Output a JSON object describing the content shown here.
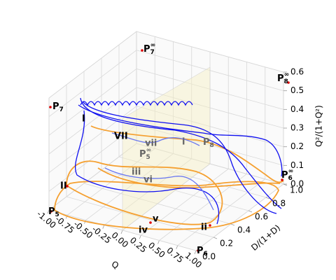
{
  "chart_data": {
    "type": "line3d",
    "xlabel": "Q",
    "ylabel": "D/(1+D)",
    "zlabel": "Q²/(1+Q²)",
    "xlim": [
      -1,
      1
    ],
    "ylim": [
      0,
      1
    ],
    "zlim": [
      0,
      0.6
    ],
    "xticks": [
      {
        "value": -1,
        "label": "-1.00"
      },
      {
        "value": -0.75,
        "label": "-0.75"
      },
      {
        "value": -0.5,
        "label": "-0.50"
      },
      {
        "value": -0.25,
        "label": "-0.25"
      },
      {
        "value": 0,
        "label": "0.00"
      },
      {
        "value": 0.25,
        "label": "0.25"
      },
      {
        "value": 0.5,
        "label": "0.50"
      },
      {
        "value": 0.75,
        "label": "0.75"
      },
      {
        "value": 1,
        "label": "1.00"
      }
    ],
    "yticks": [
      {
        "value": 0,
        "label": "0.0"
      },
      0.2,
      0.4,
      0.6,
      0.8,
      {
        "value": 1,
        "label": "1.0"
      }
    ],
    "zticks": [
      {
        "value": 0,
        "label": "0.0"
      },
      0.1,
      0.2,
      0.3,
      0.4,
      0.5,
      0.6
    ],
    "grid": true,
    "annotations": [
      {
        "text": "P",
        "sub": "7"
      },
      {
        "text": "P",
        "sub": "7",
        "sup": "∞"
      },
      {
        "text": "P",
        "sub": "8",
        "sup": "∞"
      },
      {
        "text": "P",
        "sub": "5"
      },
      {
        "text": "P",
        "sub": "6"
      },
      {
        "text": "P",
        "sub": "6",
        "sup": "∞"
      },
      {
        "text": "P",
        "sub": "5",
        "sup": "∞"
      },
      {
        "text": "P",
        "sub": "8"
      },
      {
        "text": "I"
      },
      {
        "text": "II"
      },
      {
        "text": "VII"
      },
      {
        "text": "vii"
      },
      {
        "text": "i"
      },
      {
        "text": "iii"
      },
      {
        "text": "vi"
      },
      {
        "text": "v"
      },
      {
        "text": "iv"
      },
      {
        "text": "ii"
      }
    ]
  }
}
